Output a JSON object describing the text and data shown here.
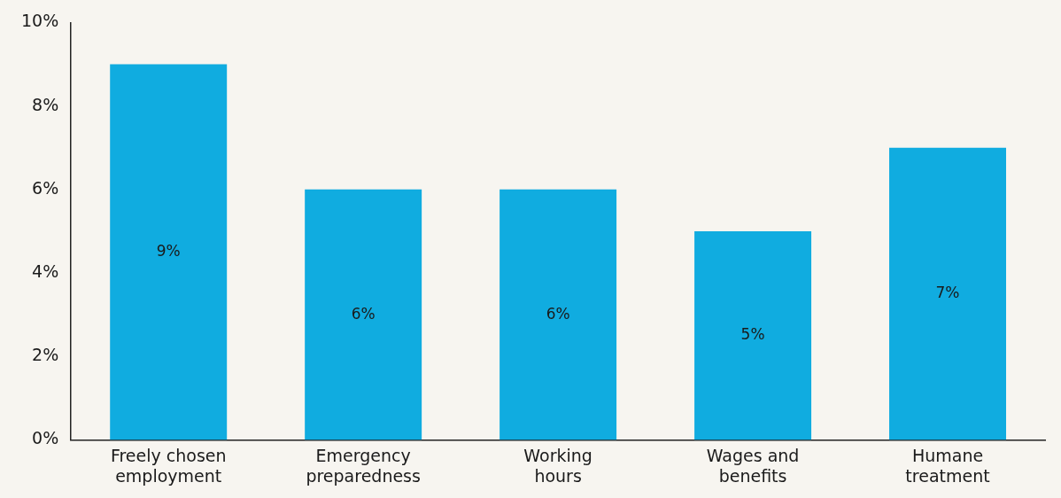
{
  "chart_data": {
    "type": "bar",
    "categories": [
      "Freely chosen employment",
      "Emergency preparedness",
      "Working hours",
      "Wages and benefits",
      "Humane treatment"
    ],
    "values": [
      9,
      6,
      6,
      5,
      7
    ],
    "color": "#10ace0",
    "value_labels": [
      "9%",
      "6%",
      "6%",
      "5%",
      "7%"
    ],
    "ylim": [
      0,
      10
    ],
    "yticks": [
      {
        "value": 0,
        "label": "0%"
      },
      {
        "value": 2,
        "label": "2%"
      },
      {
        "value": 4,
        "label": "4%"
      },
      {
        "value": 6,
        "label": "6%"
      },
      {
        "value": 8,
        "label": "8%"
      },
      {
        "value": 10,
        "label": "10%"
      }
    ],
    "grid": false,
    "legend": false
  }
}
